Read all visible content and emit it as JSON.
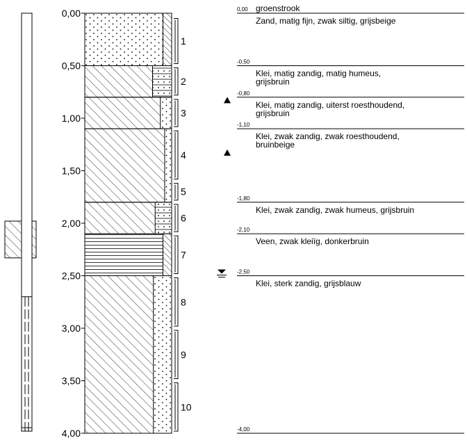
{
  "depth_scale": {
    "unit": "m",
    "max": 4.0,
    "ticks": [
      {
        "value": 0.0,
        "label": "0,00"
      },
      {
        "value": 0.5,
        "label": "0,50"
      },
      {
        "value": 1.0,
        "label": "1,00"
      },
      {
        "value": 1.5,
        "label": "1,50"
      },
      {
        "value": 2.0,
        "label": "2,00"
      },
      {
        "value": 2.5,
        "label": "2,50"
      },
      {
        "value": 3.0,
        "label": "3,00"
      },
      {
        "value": 3.5,
        "label": "3,50"
      },
      {
        "value": 4.0,
        "label": "4,00"
      }
    ]
  },
  "layers": [
    {
      "top": 0.0,
      "bottom": 0.5,
      "main": "dots",
      "admix": "hatch-fine",
      "admix_width": 0.1,
      "top_label": "0,00",
      "header": "groenstrook",
      "description": [
        "Zand, matig fijn, zwak siltig, grijsbeige"
      ]
    },
    {
      "top": 0.5,
      "bottom": 0.8,
      "main": "hatch",
      "admix": "dots-lines",
      "admix_width": 0.22,
      "top_label": "-0,50",
      "description": [
        "Klei, matig zandig, matig humeus,",
        "grijsbruin"
      ]
    },
    {
      "top": 0.8,
      "bottom": 1.1,
      "main": "hatch",
      "admix": "dots",
      "admix_width": 0.13,
      "top_label": "-0,80",
      "description": [
        "Klei, matig zandig, uiterst roesthoudend,",
        "grijsbruin"
      ]
    },
    {
      "top": 1.1,
      "bottom": 1.8,
      "main": "hatch",
      "admix": "dots",
      "admix_width": 0.08,
      "top_label": "-1,10",
      "description": [
        "Klei, zwak zandig, zwak roesthoudend,",
        "bruinbeige"
      ]
    },
    {
      "top": 1.8,
      "bottom": 2.1,
      "main": "hatch",
      "admix": "dots-lines",
      "admix_width": 0.19,
      "top_label": "-1,80",
      "description": [
        "Klei, zwak zandig, zwak humeus, grijsbruin"
      ]
    },
    {
      "top": 2.1,
      "bottom": 2.5,
      "main": "lines",
      "admix": "hatch-fine",
      "admix_width": 0.1,
      "top_label": "-2,10",
      "description": [
        "Veen, zwak kleiïg, donkerbruin"
      ]
    },
    {
      "top": 2.5,
      "bottom": 4.0,
      "main": "hatch",
      "admix": "dots",
      "admix_width": 0.21,
      "top_label": "-2,50",
      "description": [
        "Klei, sterk zandig, grijsblauw"
      ]
    }
  ],
  "bottom_label": "-4,00",
  "samples": [
    {
      "number": "1",
      "top": 0.05,
      "bottom": 0.48
    },
    {
      "number": "2",
      "top": 0.52,
      "bottom": 0.78
    },
    {
      "number": "3",
      "top": 0.82,
      "bottom": 1.08
    },
    {
      "number": "4",
      "top": 1.12,
      "bottom": 1.58
    },
    {
      "number": "5",
      "top": 1.62,
      "bottom": 1.78
    },
    {
      "number": "6",
      "top": 1.82,
      "bottom": 2.08
    },
    {
      "number": "7",
      "top": 2.12,
      "bottom": 2.48
    },
    {
      "number": "8",
      "top": 2.52,
      "bottom": 2.98
    },
    {
      "number": "9",
      "top": 3.02,
      "bottom": 3.48
    },
    {
      "number": "10",
      "top": 3.52,
      "bottom": 3.98
    }
  ],
  "observations": {
    "mottling_markers": [
      0.83,
      1.33
    ],
    "groundwater_level": 2.5
  },
  "well": {
    "top": 0.0,
    "bottom": 3.98,
    "filter_top": 2.7,
    "seal_top": 1.98,
    "seal_bottom": 2.33
  }
}
